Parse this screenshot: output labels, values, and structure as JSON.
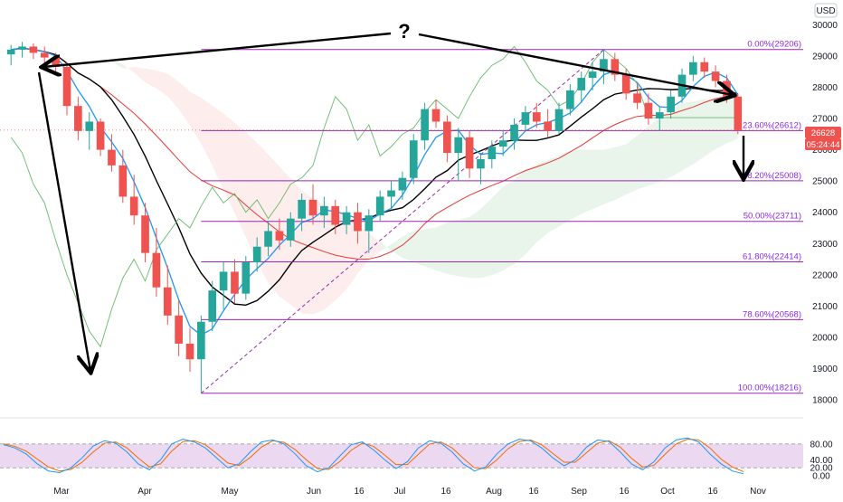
{
  "chart_data": {
    "type": "candlestick",
    "currency": "USD",
    "x_months": [
      "Mar",
      "Apr",
      "May",
      "Jun",
      "16",
      "Jul",
      "16",
      "Aug",
      "16",
      "Sep",
      "16",
      "Oct",
      "16",
      "Nov"
    ],
    "y_ticks": [
      "30000",
      "29000",
      "28000",
      "27000",
      "26000",
      "25000",
      "24000",
      "23000",
      "22000",
      "21000",
      "20000",
      "19000",
      "18000"
    ],
    "ylim": [
      17600,
      30500
    ],
    "current_price": "26628",
    "countdown": "05:24:44",
    "fib_levels": [
      {
        "label": "0.00%(29206)",
        "value": 29206
      },
      {
        "label": "23.60%(26612)",
        "value": 26612
      },
      {
        "label": "38.20%(25008)",
        "value": 25008
      },
      {
        "label": "50.00%(23711)",
        "value": 23711
      },
      {
        "label": "61.80%(22414)",
        "value": 22414
      },
      {
        "label": "78.60%(20568)",
        "value": 20568
      },
      {
        "label": "100.00%(18216)",
        "value": 18216
      }
    ],
    "annotation_text": "?",
    "oscillator": {
      "ticks": [
        "80.00",
        "40.00",
        "20.00",
        "0.00"
      ],
      "band": [
        20,
        80
      ],
      "k": [
        78,
        70,
        55,
        30,
        12,
        8,
        20,
        45,
        75,
        88,
        82,
        60,
        30,
        15,
        40,
        80,
        92,
        85,
        70,
        45,
        20,
        30,
        60,
        85,
        90,
        80,
        55,
        25,
        10,
        20,
        50,
        78,
        85,
        65,
        40,
        18,
        35,
        70,
        88,
        82,
        60,
        30,
        12,
        22,
        55,
        80,
        92,
        88,
        70,
        45,
        25,
        40,
        72,
        90,
        86,
        60,
        30,
        15,
        35,
        70,
        90,
        95,
        85,
        55,
        30,
        12,
        5
      ],
      "d": [
        80,
        74,
        62,
        42,
        22,
        12,
        16,
        34,
        60,
        82,
        85,
        70,
        45,
        22,
        30,
        62,
        86,
        88,
        78,
        56,
        32,
        26,
        46,
        72,
        88,
        84,
        66,
        40,
        18,
        16,
        36,
        64,
        82,
        74,
        52,
        28,
        28,
        54,
        80,
        85,
        70,
        44,
        20,
        18,
        40,
        68,
        86,
        90,
        78,
        56,
        34,
        34,
        58,
        82,
        88,
        72,
        44,
        22,
        26,
        54,
        80,
        92,
        90,
        70,
        42,
        22,
        10
      ]
    },
    "candles": [
      [
        29050,
        29350,
        28700,
        29200
      ],
      [
        29200,
        29450,
        28950,
        29300
      ],
      [
        29300,
        29400,
        28900,
        29100
      ],
      [
        29100,
        29300,
        28600,
        28950
      ],
      [
        28950,
        29100,
        28400,
        28650
      ],
      [
        28650,
        28800,
        27100,
        27400
      ],
      [
        27400,
        27700,
        26300,
        26600
      ],
      [
        26600,
        27200,
        26000,
        26900
      ],
      [
        26900,
        27000,
        25800,
        26000
      ],
      [
        26000,
        26500,
        25300,
        25500
      ],
      [
        25500,
        26000,
        24300,
        24500
      ],
      [
        24500,
        25200,
        23600,
        23900
      ],
      [
        23900,
        24300,
        22400,
        22700
      ],
      [
        22700,
        23500,
        21300,
        21600
      ],
      [
        21600,
        22300,
        20400,
        20700
      ],
      [
        20700,
        21200,
        19400,
        19800
      ],
      [
        19800,
        20300,
        18900,
        19300
      ],
      [
        19300,
        20700,
        18216,
        20500
      ],
      [
        20500,
        21800,
        20200,
        21500
      ],
      [
        21500,
        22400,
        20900,
        22100
      ],
      [
        22100,
        22500,
        21100,
        21400
      ],
      [
        21400,
        22600,
        21200,
        22400
      ],
      [
        22400,
        23200,
        22100,
        22900
      ],
      [
        22900,
        23700,
        22600,
        23400
      ],
      [
        23400,
        23800,
        22800,
        23100
      ],
      [
        23100,
        24000,
        22900,
        23800
      ],
      [
        23800,
        24600,
        23400,
        24400
      ],
      [
        24400,
        24900,
        23600,
        23900
      ],
      [
        23900,
        24500,
        23500,
        24200
      ],
      [
        24200,
        24400,
        23300,
        23600
      ],
      [
        23600,
        24200,
        23300,
        24000
      ],
      [
        24000,
        24300,
        23000,
        23400
      ],
      [
        23400,
        24100,
        22700,
        23900
      ],
      [
        23900,
        24700,
        23700,
        24500
      ],
      [
        24500,
        25000,
        24100,
        24700
      ],
      [
        24700,
        25300,
        24400,
        25100
      ],
      [
        25100,
        26500,
        24900,
        26300
      ],
      [
        26300,
        27500,
        26000,
        27300
      ],
      [
        27300,
        27600,
        26700,
        26900
      ],
      [
        26900,
        27100,
        25600,
        25900
      ],
      [
        25900,
        26700,
        25000,
        26400
      ],
      [
        26400,
        26600,
        25100,
        25400
      ],
      [
        25400,
        25900,
        24900,
        25700
      ],
      [
        25700,
        26300,
        25400,
        26100
      ],
      [
        26100,
        26600,
        25800,
        26300
      ],
      [
        26300,
        27000,
        26000,
        26800
      ],
      [
        26800,
        27400,
        26600,
        27200
      ],
      [
        27200,
        27500,
        26700,
        26900
      ],
      [
        26900,
        27300,
        26400,
        26600
      ],
      [
        26600,
        27500,
        26500,
        27300
      ],
      [
        27300,
        28100,
        27100,
        27900
      ],
      [
        27900,
        28500,
        27500,
        28300
      ],
      [
        28300,
        28800,
        27900,
        28500
      ],
      [
        28500,
        29206,
        28100,
        28900
      ],
      [
        28900,
        29100,
        28200,
        28400
      ],
      [
        28400,
        28600,
        27600,
        27800
      ],
      [
        27800,
        28100,
        27300,
        27500
      ],
      [
        27500,
        27800,
        26800,
        27000
      ],
      [
        27000,
        27400,
        26600,
        27200
      ],
      [
        27200,
        27900,
        27000,
        27700
      ],
      [
        27700,
        28600,
        27500,
        28400
      ],
      [
        28400,
        29000,
        28200,
        28800
      ],
      [
        28800,
        28950,
        28300,
        28500
      ],
      [
        28500,
        28700,
        28000,
        28200
      ],
      [
        28200,
        28400,
        27500,
        27700
      ],
      [
        27700,
        27800,
        26500,
        26628
      ]
    ]
  }
}
